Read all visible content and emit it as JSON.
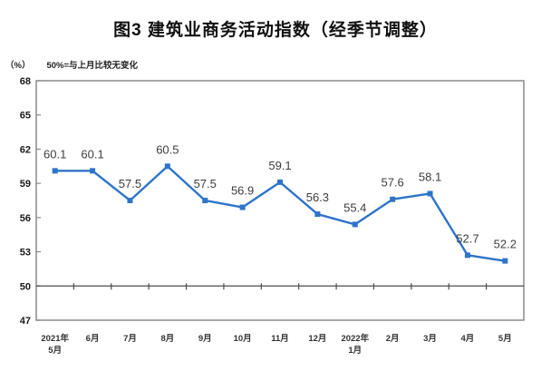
{
  "title": "图3 建筑业商务活动指数（经季节调整）",
  "y_axis_unit": "（%）",
  "reference_note": "50%=与上月比较无变化",
  "colors": {
    "line": "#2E74C8",
    "marker": "#2E74C8",
    "plot_border": "#8A8A8A",
    "reference_line": "#4D4D4D",
    "data_label": "#3D3D3D",
    "tick_label": "#1A1A1A"
  },
  "chart_data": {
    "type": "line",
    "title": "图3 建筑业商务活动指数（经季节调整）",
    "ylabel": "（%）",
    "annotation": "50%=与上月比较无变化",
    "categories": [
      "2021年5月",
      "6月",
      "7月",
      "8月",
      "9月",
      "10月",
      "11月",
      "12月",
      "2022年1月",
      "2月",
      "3月",
      "4月",
      "5月"
    ],
    "category_lines": [
      [
        "2021年",
        "5月"
      ],
      [
        "6月"
      ],
      [
        "7月"
      ],
      [
        "8月"
      ],
      [
        "9月"
      ],
      [
        "10月"
      ],
      [
        "11月"
      ],
      [
        "12月"
      ],
      [
        "2022年",
        "1月"
      ],
      [
        "2月"
      ],
      [
        "3月"
      ],
      [
        "4月"
      ],
      [
        "5月"
      ]
    ],
    "values": [
      60.1,
      60.1,
      57.5,
      60.5,
      57.5,
      56.9,
      59.1,
      56.3,
      55.4,
      57.6,
      58.1,
      52.7,
      52.2
    ],
    "data_labels": [
      "60.1",
      "60.1",
      "57.5",
      "60.5",
      "57.5",
      "56.9",
      "59.1",
      "56.3",
      "55.4",
      "57.6",
      "58.1",
      "52.7",
      "52.2"
    ],
    "y_ticks": [
      47,
      50,
      53,
      56,
      59,
      62,
      65,
      68
    ],
    "ylim": [
      47,
      68
    ],
    "reference_value": 50,
    "grid": false,
    "legend": "none",
    "marker": "square"
  }
}
